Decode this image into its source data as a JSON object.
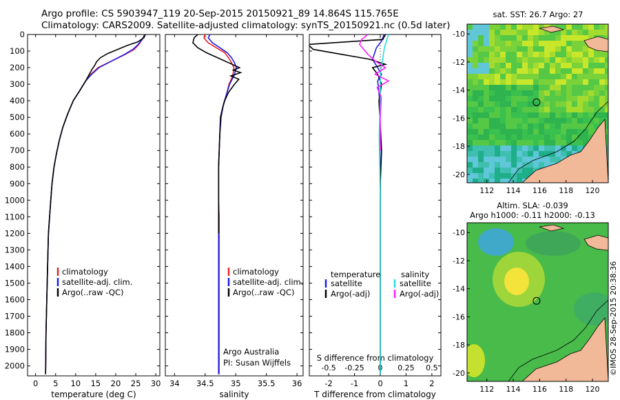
{
  "header": {
    "line1": "Argo profile: CS 5903947_119 20-Sep-2015 20150921_89 14.864S 115.765E",
    "line2": "Climatology: CARS2009. Satellite-adjusted climatology: synTS_20150921.nc (0.5d later)"
  },
  "footer_stamp": "©IMOS 28-Sep-2015 20:38:36",
  "colors": {
    "climatology": "#ee2222",
    "satellite": "#1a1ae6",
    "argo": "#000000",
    "argo_adj_salinity": "#ff1aff",
    "satellite_salinity": "#22dddd",
    "land": "#f2b998"
  },
  "chart_data": [
    {
      "type": "line",
      "id": "temperature",
      "xlabel": "temperature (deg C)",
      "ylabel": "",
      "xlim": [
        -2,
        31
      ],
      "ylim": [
        2060,
        0
      ],
      "xticks": [
        0,
        5,
        10,
        15,
        20,
        25,
        30
      ],
      "yticks": [
        0,
        100,
        200,
        300,
        400,
        500,
        600,
        700,
        800,
        900,
        1000,
        1100,
        1200,
        1300,
        1400,
        1500,
        1600,
        1700,
        1800,
        1900,
        2000
      ],
      "legend": [
        "climatology",
        "satellite-adj. clim.",
        "Argo(..raw -QC)"
      ],
      "legend_position": "bottom-right",
      "series": [
        {
          "name": "climatology",
          "color": "#ee2222",
          "x": [
            27.2,
            26.6,
            25.8,
            24.6,
            22.4,
            19.0,
            15.6,
            13.8,
            12.5,
            11.0,
            9.4,
            8.0,
            6.8,
            5.9,
            5.2,
            4.6,
            4.1,
            3.8,
            3.5,
            3.2,
            3.0,
            2.8,
            2.6,
            2.5
          ],
          "y": [
            0,
            30,
            60,
            90,
            120,
            160,
            200,
            240,
            280,
            340,
            400,
            480,
            560,
            640,
            720,
            800,
            900,
            1000,
            1100,
            1200,
            1400,
            1600,
            1800,
            2050
          ]
        },
        {
          "name": "satellite-adj. clim.",
          "color": "#1a1ae6",
          "x": [
            27.3,
            26.6,
            25.6,
            24.3,
            22.2,
            19.0,
            15.8,
            14.0,
            12.5,
            11.0,
            9.4,
            8.0,
            6.8,
            5.9,
            5.2,
            4.6,
            4.1,
            3.8,
            3.5,
            3.2,
            3.0,
            2.8,
            2.6,
            2.5
          ],
          "y": [
            0,
            30,
            60,
            90,
            120,
            160,
            200,
            240,
            280,
            340,
            400,
            480,
            560,
            640,
            720,
            800,
            900,
            1000,
            1100,
            1200,
            1400,
            1600,
            1800,
            2050
          ]
        },
        {
          "name": "Argo(..raw -QC)",
          "color": "#000000",
          "x": [
            27.4,
            27.0,
            25.5,
            23.0,
            20.5,
            18.0,
            16.2,
            15.2,
            14.8,
            14.2,
            12.5,
            11.0,
            9.4,
            8.0,
            6.8,
            5.9,
            5.2,
            4.6,
            4.1,
            3.8,
            3.5,
            3.2,
            3.0,
            2.8,
            2.6,
            2.5
          ],
          "y": [
            0,
            20,
            45,
            65,
            90,
            115,
            140,
            165,
            185,
            205,
            280,
            340,
            400,
            480,
            560,
            640,
            720,
            800,
            900,
            1000,
            1100,
            1200,
            1400,
            1600,
            1800,
            2050
          ]
        }
      ]
    },
    {
      "type": "line",
      "id": "salinity",
      "xlabel": "salinity",
      "ylabel": "",
      "xlim": [
        33.85,
        36.1
      ],
      "ylim": [
        2060,
        0
      ],
      "xticks": [
        34,
        34.5,
        35,
        35.5,
        36
      ],
      "legend": [
        "climatology",
        "satellite-adj. clim.",
        "Argo(..raw -QC)"
      ],
      "legend_position": "bottom-right",
      "annotations": [
        "Argo Australia",
        "PI: Susan Wijffels"
      ],
      "series": [
        {
          "name": "climatology",
          "color": "#ee2222",
          "x": [
            34.5,
            34.48,
            34.55,
            34.68,
            34.82,
            34.88,
            34.93,
            34.97,
            34.95,
            34.89,
            34.85,
            34.8,
            34.76,
            34.74,
            34.73,
            34.72,
            34.72,
            34.72,
            34.73,
            34.73,
            34.73,
            34.73,
            34.73,
            34.73,
            34.73
          ],
          "y": [
            0,
            20,
            50,
            80,
            110,
            140,
            170,
            200,
            250,
            300,
            360,
            420,
            500,
            600,
            700,
            800,
            900,
            1000,
            1100,
            1200,
            1400,
            1600,
            1800,
            1900,
            2050
          ]
        },
        {
          "name": "satellite-adj. clim.",
          "color": "#1a1ae6",
          "x": [
            34.58,
            34.55,
            34.62,
            34.74,
            34.86,
            34.93,
            34.98,
            35.01,
            34.97,
            34.9,
            34.85,
            34.8,
            34.76,
            34.74,
            34.73,
            34.72,
            34.72,
            34.72,
            34.72,
            34.72,
            34.72,
            34.72,
            34.72,
            34.72,
            34.72
          ],
          "y": [
            0,
            20,
            50,
            80,
            110,
            140,
            170,
            200,
            250,
            300,
            360,
            420,
            500,
            600,
            700,
            800,
            900,
            1000,
            1100,
            1200,
            1400,
            1600,
            1800,
            1900,
            2050
          ]
        },
        {
          "name": "Argo(..raw -QC)",
          "color": "#000000",
          "x": [
            34.38,
            34.32,
            34.3,
            34.38,
            34.52,
            34.7,
            34.88,
            35.06,
            34.96,
            35.08,
            34.92,
            35.05,
            34.98,
            34.88,
            34.82,
            34.78,
            34.75,
            34.74,
            34.73,
            34.72,
            34.72,
            34.72,
            34.72,
            34.72
          ],
          "y": [
            0,
            20,
            50,
            80,
            110,
            140,
            170,
            200,
            215,
            230,
            250,
            270,
            300,
            350,
            400,
            450,
            500,
            600,
            700,
            800,
            900,
            1000,
            1100,
            1200
          ]
        }
      ]
    },
    {
      "type": "line",
      "id": "difference",
      "xlabel": "T difference from climatology",
      "x2label": "S difference from climatology",
      "xlim": [
        -2.75,
        2.35
      ],
      "x2lim": [
        -0.6875,
        0.5875
      ],
      "ylim": [
        2060,
        0
      ],
      "xticks": [
        -2,
        -1,
        0,
        1,
        2
      ],
      "x2ticks": [
        -0.5,
        -0.25,
        0,
        0.25,
        0.5
      ],
      "legend_temperature_title": "temperature",
      "legend_salinity_title": "salinity",
      "legend": [
        "satellite",
        "Argo(-adj)",
        "satellite",
        "Argo(-adj)"
      ],
      "series": [
        {
          "name": "satellite",
          "axis": "T",
          "color": "#1a1ae6",
          "x": [
            0.15,
            0.05,
            -0.15,
            -0.3,
            -0.1,
            0.05,
            -0.1,
            -0.05,
            0.0,
            -0.02,
            0.0,
            0.0,
            0.0
          ],
          "y": [
            0,
            40,
            80,
            150,
            200,
            240,
            280,
            350,
            450,
            600,
            900,
            1400,
            2050
          ]
        },
        {
          "name": "Argo(-adj)",
          "axis": "T",
          "color": "#000000",
          "x": [
            0.2,
            0.1,
            -2.8,
            -2.6,
            -1.5,
            -0.4,
            0.2,
            -0.3,
            -0.1,
            0.05,
            -0.05,
            0.02,
            0.05,
            0.0,
            0.0,
            0.0
          ],
          "y": [
            0,
            30,
            60,
            90,
            120,
            150,
            180,
            200,
            240,
            300,
            400,
            600,
            700,
            900,
            1400,
            2050
          ]
        },
        {
          "name": "satellite",
          "axis": "S",
          "color": "#22dddd",
          "x": [
            0.08,
            0.06,
            0.04,
            0.03,
            0.02,
            0.01,
            0.0,
            0.0,
            0.0,
            -0.01,
            0.0,
            0.0
          ],
          "y": [
            0,
            40,
            80,
            120,
            160,
            200,
            250,
            300,
            400,
            600,
            1000,
            2050
          ]
        },
        {
          "name": "Argo(-adj)",
          "axis": "S",
          "color": "#ff1aff",
          "x": [
            -0.12,
            -0.18,
            -0.2,
            -0.16,
            -0.12,
            -0.05,
            0.05,
            -0.05,
            0.08,
            -0.03,
            0.01,
            0.0,
            0.0
          ],
          "y": [
            0,
            30,
            60,
            90,
            120,
            160,
            200,
            240,
            280,
            320,
            380,
            500,
            700
          ]
        }
      ]
    },
    {
      "type": "heatmap",
      "id": "sst_map",
      "title": "sat. SST: 26.7 Argo: 27",
      "xlim": [
        110.5,
        121.2
      ],
      "ylim": [
        -20.6,
        -9.3
      ],
      "xticks": [
        112,
        114,
        116,
        118,
        120
      ],
      "yticks": [
        -10,
        -12,
        -14,
        -16,
        -18,
        -20
      ],
      "argo_position": {
        "lon": 115.765,
        "lat": -14.864
      }
    },
    {
      "type": "heatmap",
      "id": "sla_map",
      "title": "Altim. SLA: -0.039",
      "subtitle": "Argo h1000: -0.11 h2000: -0.13",
      "xlim": [
        110.5,
        121.2
      ],
      "ylim": [
        -20.6,
        -9.3
      ],
      "xticks": [
        112,
        114,
        116,
        118,
        120
      ],
      "yticks": [
        -10,
        -12,
        -14,
        -16,
        -18,
        -20
      ],
      "argo_position": {
        "lon": 115.765,
        "lat": -14.864
      }
    }
  ]
}
